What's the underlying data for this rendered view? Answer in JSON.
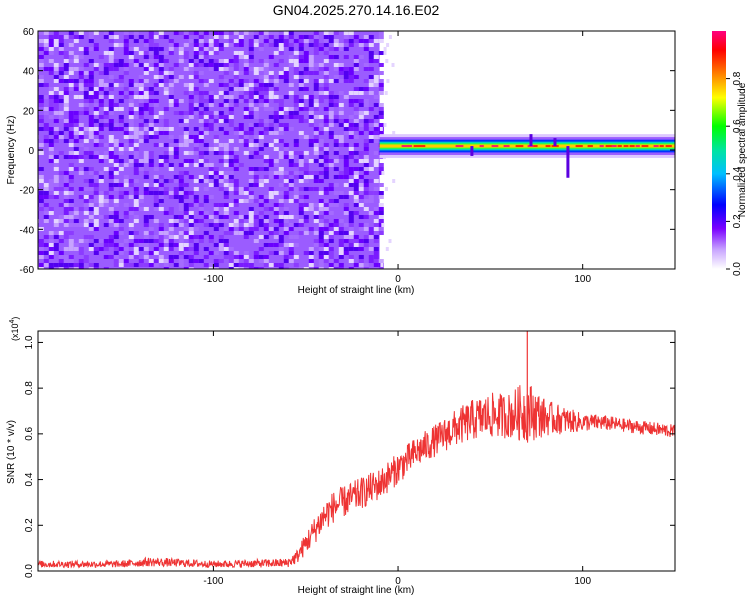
{
  "figure_title": "GN04.2025.270.14.16.E02",
  "chart_data": [
    {
      "type": "heatmap",
      "xlabel": "Height of straight line (km)",
      "ylabel": "Frequency (Hz)",
      "xlim": [
        -195,
        150
      ],
      "ylim": [
        -60,
        60
      ],
      "xticks": [
        -100,
        0,
        100
      ],
      "yticks": [
        -60,
        -40,
        -20,
        0,
        20,
        40,
        60
      ],
      "regions": [
        {
          "x_from": -195,
          "x_to": -10,
          "description_value": "broadband noise",
          "amplitude": 0.1
        },
        {
          "x_from": -10,
          "x_to": 150,
          "center_frequency": 2,
          "amplitude": 0.9
        }
      ],
      "colorbar": {
        "label": "Normalized spectral amplitude",
        "range": [
          0,
          1
        ],
        "ticks": [
          0.0,
          0.2,
          0.4,
          0.6,
          0.8
        ],
        "tick_labels": [
          "0.0",
          "0.2",
          "0.4",
          "0.6",
          "0.8"
        ]
      }
    },
    {
      "type": "line",
      "xlabel": "Height of straight line (km)",
      "ylabel": "SNR (10 * v/v)",
      "multiplier_label": "(x10",
      "multiplier_exp": "4",
      "multiplier_close": ")",
      "xlim": [
        -195,
        150
      ],
      "ylim": [
        0,
        1.05
      ],
      "xticks": [
        -100,
        0,
        100
      ],
      "yticks": [
        0.0,
        0.2,
        0.4,
        0.6,
        0.8,
        1.0
      ],
      "ytick_labels": [
        "0.0",
        "0.2",
        "0.4",
        "0.6",
        "0.8",
        "1.0"
      ],
      "series": [
        {
          "color": "#ee3333",
          "x": [
            -195,
            -150,
            -135,
            -100,
            -60,
            -55,
            -50,
            -45,
            -40,
            -35,
            -30,
            -20,
            -10,
            0,
            10,
            20,
            30,
            40,
            50,
            60,
            70,
            80,
            90,
            100,
            110,
            120,
            130,
            140,
            150
          ],
          "y": [
            0.03,
            0.03,
            0.04,
            0.03,
            0.035,
            0.06,
            0.12,
            0.18,
            0.24,
            0.28,
            0.3,
            0.34,
            0.38,
            0.45,
            0.52,
            0.57,
            0.62,
            0.66,
            0.68,
            0.68,
            0.7,
            0.67,
            0.66,
            0.65,
            0.65,
            0.64,
            0.63,
            0.62,
            0.61
          ],
          "spread": [
            0.015,
            0.015,
            0.02,
            0.015,
            0.02,
            0.03,
            0.05,
            0.06,
            0.07,
            0.07,
            0.07,
            0.07,
            0.07,
            0.07,
            0.07,
            0.07,
            0.08,
            0.09,
            0.1,
            0.1,
            0.14,
            0.08,
            0.06,
            0.04,
            0.035,
            0.03,
            0.03,
            0.03,
            0.03
          ],
          "peak": {
            "x": 70,
            "y": 1.05
          }
        }
      ]
    }
  ]
}
